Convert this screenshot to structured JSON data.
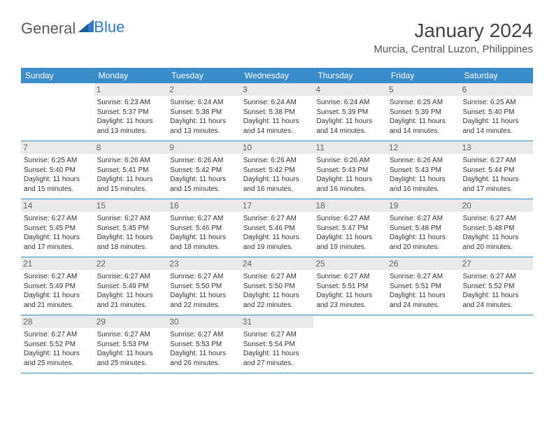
{
  "brand": {
    "part1": "General",
    "part2": "Blue"
  },
  "title": "January 2024",
  "location": "Murcia, Central Luzon, Philippines",
  "colors": {
    "header_bg": "#3b8ccb",
    "header_text": "#ffffff",
    "daynum_bg": "#e9e9e9",
    "daynum_text": "#666666",
    "body_text": "#333333",
    "rule": "#3b8ccb",
    "page_bg": "#ffffff",
    "logo_gray": "#5a5a5a",
    "logo_blue": "#2f78c4"
  },
  "typography": {
    "title_fontsize": 28,
    "location_fontsize": 15,
    "dayheader_fontsize": 12,
    "daynum_fontsize": 12,
    "body_fontsize": 10
  },
  "layout": {
    "columns": 7,
    "rows": 5,
    "start_weekday": "Sunday",
    "aspect": "792x612"
  },
  "weekdays": [
    "Sunday",
    "Monday",
    "Tuesday",
    "Wednesday",
    "Thursday",
    "Friday",
    "Saturday"
  ],
  "days": [
    {
      "n": 1,
      "sunrise": "6:23 AM",
      "sunset": "5:37 PM",
      "daylight": "11 hours and 13 minutes."
    },
    {
      "n": 2,
      "sunrise": "6:24 AM",
      "sunset": "5:38 PM",
      "daylight": "11 hours and 13 minutes."
    },
    {
      "n": 3,
      "sunrise": "6:24 AM",
      "sunset": "5:38 PM",
      "daylight": "11 hours and 14 minutes."
    },
    {
      "n": 4,
      "sunrise": "6:24 AM",
      "sunset": "5:39 PM",
      "daylight": "11 hours and 14 minutes."
    },
    {
      "n": 5,
      "sunrise": "6:25 AM",
      "sunset": "5:39 PM",
      "daylight": "11 hours and 14 minutes."
    },
    {
      "n": 6,
      "sunrise": "6:25 AM",
      "sunset": "5:40 PM",
      "daylight": "11 hours and 14 minutes."
    },
    {
      "n": 7,
      "sunrise": "6:25 AM",
      "sunset": "5:40 PM",
      "daylight": "11 hours and 15 minutes."
    },
    {
      "n": 8,
      "sunrise": "6:26 AM",
      "sunset": "5:41 PM",
      "daylight": "11 hours and 15 minutes."
    },
    {
      "n": 9,
      "sunrise": "6:26 AM",
      "sunset": "5:42 PM",
      "daylight": "11 hours and 15 minutes."
    },
    {
      "n": 10,
      "sunrise": "6:26 AM",
      "sunset": "5:42 PM",
      "daylight": "11 hours and 16 minutes."
    },
    {
      "n": 11,
      "sunrise": "6:26 AM",
      "sunset": "5:43 PM",
      "daylight": "11 hours and 16 minutes."
    },
    {
      "n": 12,
      "sunrise": "6:26 AM",
      "sunset": "5:43 PM",
      "daylight": "11 hours and 16 minutes."
    },
    {
      "n": 13,
      "sunrise": "6:27 AM",
      "sunset": "5:44 PM",
      "daylight": "11 hours and 17 minutes."
    },
    {
      "n": 14,
      "sunrise": "6:27 AM",
      "sunset": "5:45 PM",
      "daylight": "11 hours and 17 minutes."
    },
    {
      "n": 15,
      "sunrise": "6:27 AM",
      "sunset": "5:45 PM",
      "daylight": "11 hours and 18 minutes."
    },
    {
      "n": 16,
      "sunrise": "6:27 AM",
      "sunset": "5:46 PM",
      "daylight": "11 hours and 18 minutes."
    },
    {
      "n": 17,
      "sunrise": "6:27 AM",
      "sunset": "5:46 PM",
      "daylight": "11 hours and 19 minutes."
    },
    {
      "n": 18,
      "sunrise": "6:27 AM",
      "sunset": "5:47 PM",
      "daylight": "11 hours and 19 minutes."
    },
    {
      "n": 19,
      "sunrise": "6:27 AM",
      "sunset": "5:48 PM",
      "daylight": "11 hours and 20 minutes."
    },
    {
      "n": 20,
      "sunrise": "6:27 AM",
      "sunset": "5:48 PM",
      "daylight": "11 hours and 20 minutes."
    },
    {
      "n": 21,
      "sunrise": "6:27 AM",
      "sunset": "5:49 PM",
      "daylight": "11 hours and 21 minutes."
    },
    {
      "n": 22,
      "sunrise": "6:27 AM",
      "sunset": "5:49 PM",
      "daylight": "11 hours and 21 minutes."
    },
    {
      "n": 23,
      "sunrise": "6:27 AM",
      "sunset": "5:50 PM",
      "daylight": "11 hours and 22 minutes."
    },
    {
      "n": 24,
      "sunrise": "6:27 AM",
      "sunset": "5:50 PM",
      "daylight": "11 hours and 22 minutes."
    },
    {
      "n": 25,
      "sunrise": "6:27 AM",
      "sunset": "5:51 PM",
      "daylight": "11 hours and 23 minutes."
    },
    {
      "n": 26,
      "sunrise": "6:27 AM",
      "sunset": "5:51 PM",
      "daylight": "11 hours and 24 minutes."
    },
    {
      "n": 27,
      "sunrise": "6:27 AM",
      "sunset": "5:52 PM",
      "daylight": "11 hours and 24 minutes."
    },
    {
      "n": 28,
      "sunrise": "6:27 AM",
      "sunset": "5:52 PM",
      "daylight": "11 hours and 25 minutes."
    },
    {
      "n": 29,
      "sunrise": "6:27 AM",
      "sunset": "5:53 PM",
      "daylight": "11 hours and 25 minutes."
    },
    {
      "n": 30,
      "sunrise": "6:27 AM",
      "sunset": "5:53 PM",
      "daylight": "11 hours and 26 minutes."
    },
    {
      "n": 31,
      "sunrise": "6:27 AM",
      "sunset": "5:54 PM",
      "daylight": "11 hours and 27 minutes."
    }
  ],
  "first_day_offset": 1,
  "labels": {
    "sunrise": "Sunrise:",
    "sunset": "Sunset:",
    "daylight": "Daylight:"
  }
}
